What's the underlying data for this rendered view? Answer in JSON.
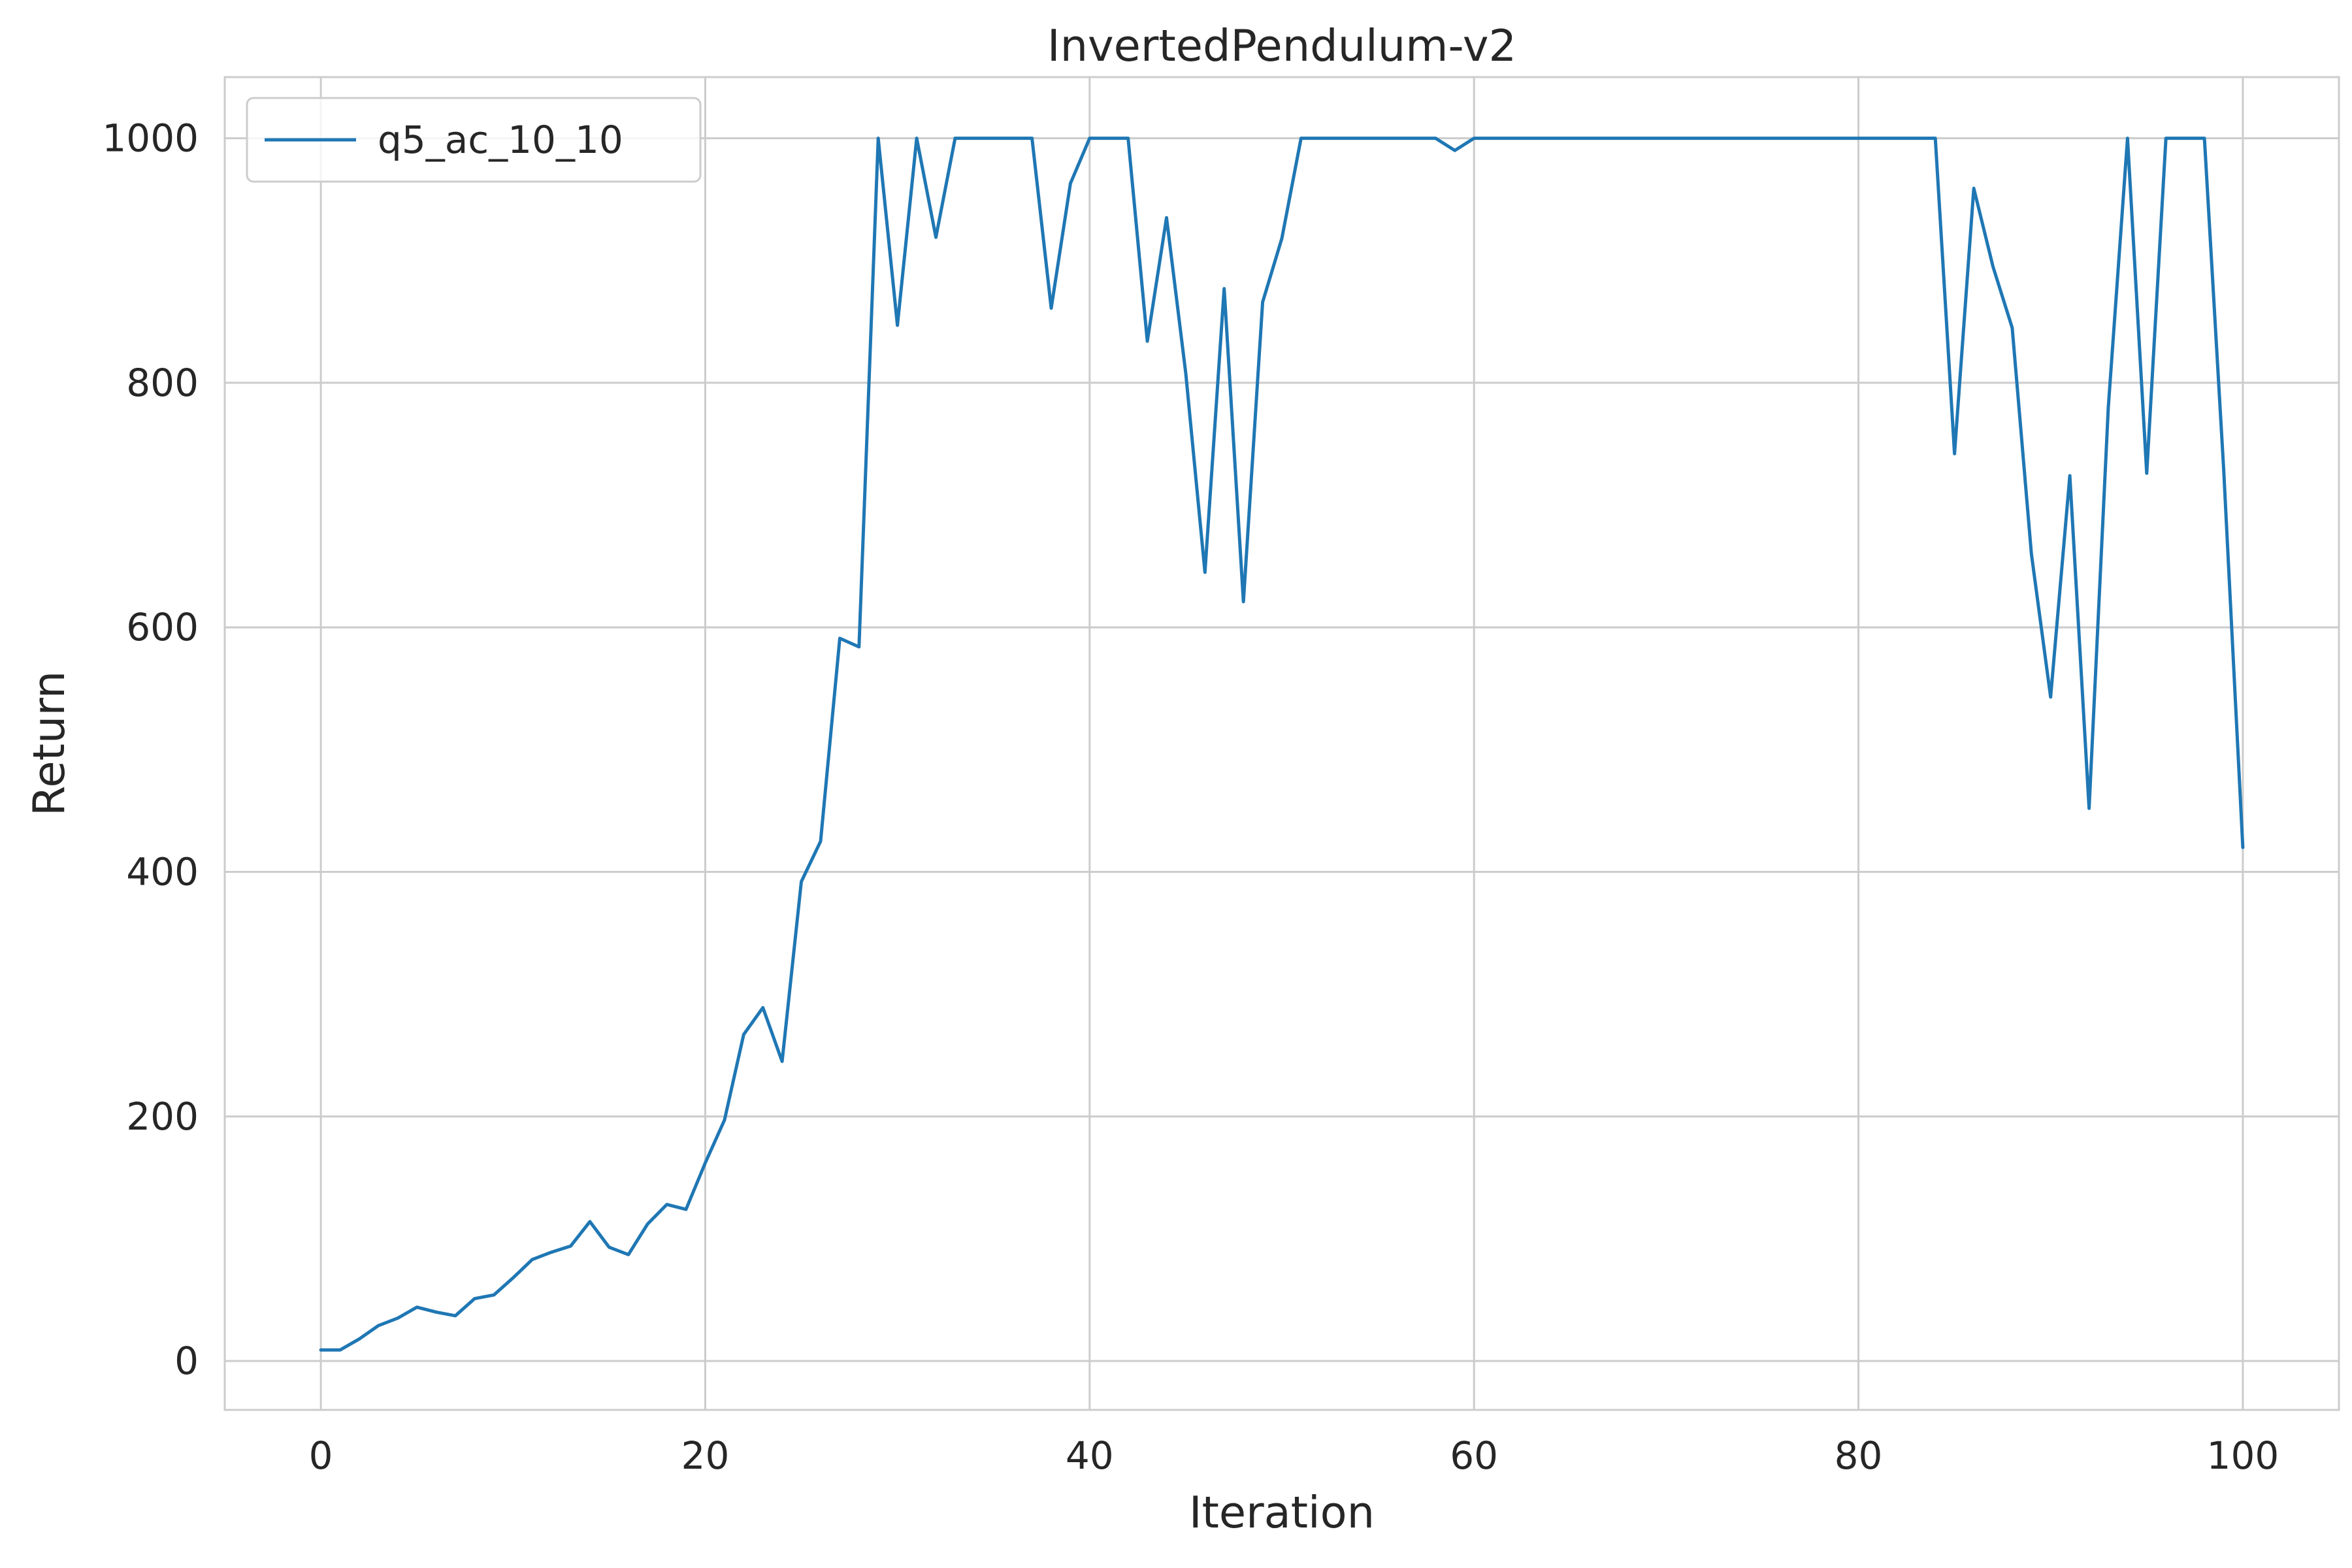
{
  "chart_data": {
    "type": "line",
    "title": "InvertedPendulum-v2",
    "xlabel": "Iteration",
    "ylabel": "Return",
    "xlim": [
      -5,
      105
    ],
    "ylim": [
      -40,
      1050
    ],
    "xticks": [
      0,
      20,
      40,
      60,
      80,
      100
    ],
    "yticks": [
      0,
      200,
      400,
      600,
      800,
      1000
    ],
    "grid": true,
    "legend_position": "upper-left",
    "series": [
      {
        "name": "q5_ac_10_10",
        "color": "#1f77b4",
        "x": [
          0,
          1,
          2,
          3,
          4,
          5,
          6,
          7,
          8,
          9,
          10,
          11,
          12,
          13,
          14,
          15,
          16,
          17,
          18,
          19,
          20,
          21,
          22,
          23,
          24,
          25,
          26,
          27,
          28,
          29,
          30,
          31,
          32,
          33,
          34,
          35,
          36,
          37,
          38,
          39,
          40,
          41,
          42,
          43,
          44,
          45,
          46,
          47,
          48,
          49,
          50,
          51,
          52,
          53,
          54,
          55,
          56,
          57,
          58,
          59,
          60,
          61,
          62,
          63,
          64,
          65,
          66,
          67,
          68,
          69,
          70,
          71,
          72,
          73,
          74,
          75,
          76,
          77,
          78,
          79,
          80,
          81,
          82,
          83,
          84,
          85,
          86,
          87,
          88,
          89,
          90,
          91,
          92,
          93,
          94,
          95,
          96,
          97,
          98,
          99,
          100
        ],
        "y": [
          9,
          9,
          18,
          29,
          35,
          44,
          40,
          37,
          51,
          54,
          68,
          83,
          89,
          94,
          114,
          93,
          87,
          112,
          128,
          124,
          162,
          197,
          267,
          289,
          245,
          392,
          425,
          591,
          584,
          1000,
          847,
          1000,
          919,
          1000,
          1000,
          1000,
          1000,
          1000,
          861,
          963,
          1000,
          1000,
          1000,
          834,
          935,
          808,
          645,
          877,
          621,
          866,
          918,
          1000,
          1000,
          1000,
          1000,
          1000,
          1000,
          1000,
          1000,
          990,
          1000,
          1000,
          1000,
          1000,
          1000,
          1000,
          1000,
          1000,
          1000,
          1000,
          1000,
          1000,
          1000,
          1000,
          1000,
          1000,
          1000,
          1000,
          1000,
          1000,
          1000,
          1000,
          1000,
          1000,
          1000,
          742,
          959,
          895,
          845,
          660,
          543,
          724,
          452,
          780,
          1000,
          726,
          1000,
          1000,
          1000,
          730,
          420
        ]
      }
    ]
  }
}
